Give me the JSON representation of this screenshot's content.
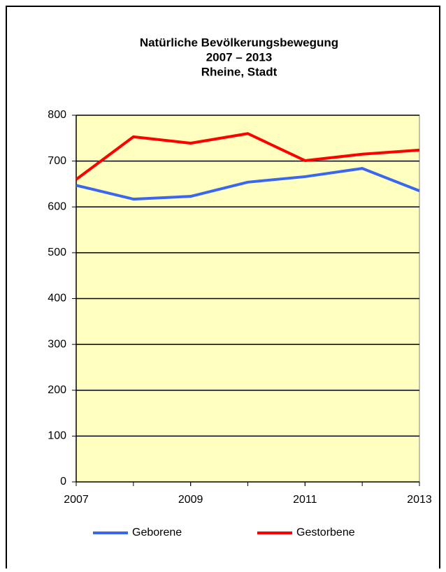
{
  "chart_data": {
    "type": "line",
    "title": [
      "Natürliche Bevölkerungsbewegung",
      "2007 – 2013",
      "Rheine, Stadt"
    ],
    "x": [
      2007,
      2008,
      2009,
      2010,
      2011,
      2012,
      2013
    ],
    "series": [
      {
        "name": "Geborene",
        "color": "#3a66f0",
        "values": [
          647,
          617,
          623,
          654,
          666,
          684,
          635
        ]
      },
      {
        "name": "Gestorbene",
        "color": "#ff0000",
        "values": [
          660,
          753,
          739,
          760,
          701,
          715,
          724
        ]
      }
    ],
    "xlim": [
      2007,
      2013
    ],
    "xticks": [
      2007,
      2009,
      2011,
      2013
    ],
    "ylim": [
      0,
      800
    ],
    "yticks": [
      0,
      100,
      200,
      300,
      400,
      500,
      600,
      700,
      800
    ],
    "grid": true,
    "legend": "bottom",
    "plot_background": "#ffffc0"
  }
}
